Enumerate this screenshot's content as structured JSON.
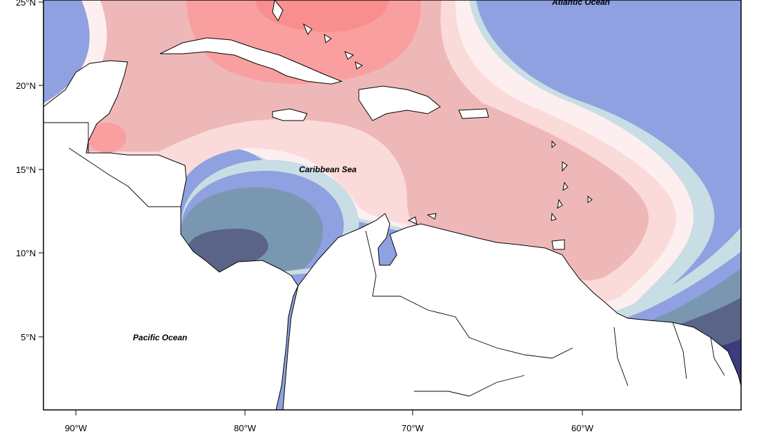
{
  "map": {
    "region": "Caribbean",
    "labels": {
      "atlantic": "Atlantic Ocean",
      "caribbean": "Caribbean Sea",
      "pacific": "Pacific Ocean"
    },
    "lat_ticks": [
      "25°N",
      "20°N",
      "15°N",
      "10°N",
      "5°N"
    ],
    "lon_ticks": [
      "90°W",
      "80°W",
      "70°W",
      "60°W"
    ],
    "colors": {
      "red_strong": "#f88e8e",
      "red_mid": "#fa9f9f",
      "red_light": "#efb8b8",
      "pink": "#fbdada",
      "white_band": "#fdeff0",
      "light_blue": "#c9dde4",
      "blue": "#8fa1e0",
      "steel": "#7a97b2",
      "slate": "#5a6488",
      "navy": "#3d3b7e",
      "land": "#ffffff",
      "coast": "#000000"
    }
  }
}
